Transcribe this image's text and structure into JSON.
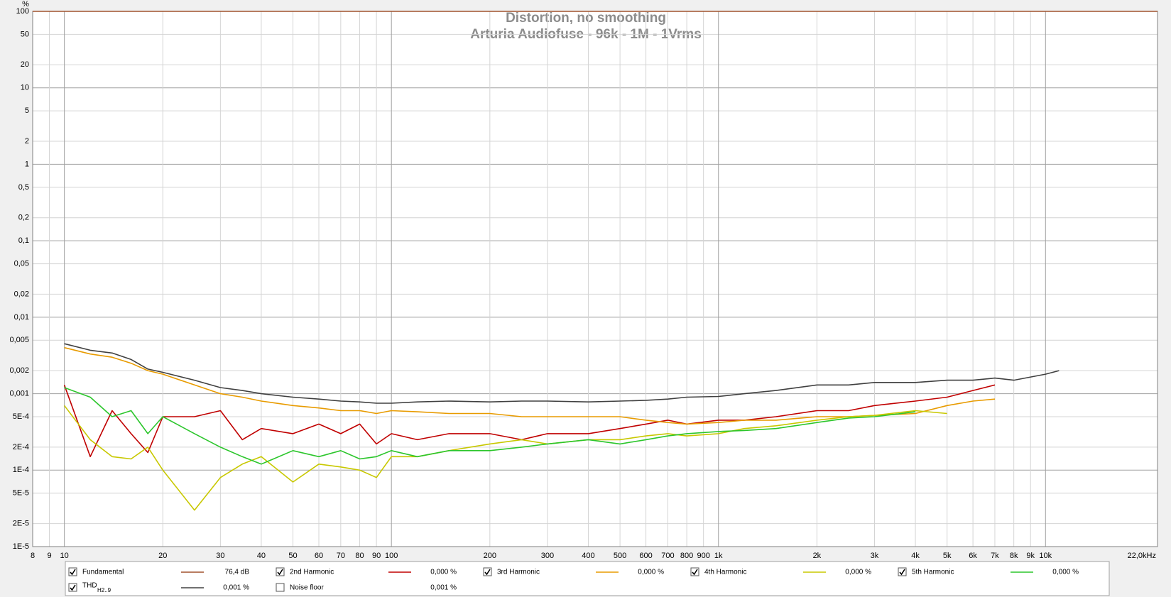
{
  "chart_data": {
    "type": "line",
    "title": "Distortion, no smoothing",
    "subtitle": "Arturia Audiofuse - 96k - 1M - 1Vrms",
    "y_label": "%",
    "log_x": true,
    "log_y": true,
    "grid": true,
    "xlim": [
      8,
      22000
    ],
    "ylim": [
      1e-05,
      100
    ],
    "xticks": [
      8,
      9,
      10,
      20,
      30,
      40,
      50,
      60,
      70,
      80,
      90,
      100,
      200,
      300,
      400,
      500,
      600,
      700,
      800,
      900,
      {
        "value": 1000,
        "label": "1k"
      },
      {
        "value": 2000,
        "label": "2k"
      },
      {
        "value": 3000,
        "label": "3k"
      },
      {
        "value": 4000,
        "label": "4k"
      },
      {
        "value": 5000,
        "label": "5k"
      },
      {
        "value": 6000,
        "label": "6k"
      },
      {
        "value": 7000,
        "label": "7k"
      },
      {
        "value": 8000,
        "label": "8k"
      },
      {
        "value": 9000,
        "label": "9k"
      },
      {
        "value": 10000,
        "label": "10k"
      },
      {
        "value": 22000,
        "label": "22,0kHz"
      }
    ],
    "yticks": [
      100,
      50,
      20,
      10,
      5,
      2,
      1,
      {
        "value": 0.5,
        "label": "0,5"
      },
      {
        "value": 0.2,
        "label": "0,2"
      },
      {
        "value": 0.1,
        "label": "0,1"
      },
      {
        "value": 0.05,
        "label": "0,05"
      },
      {
        "value": 0.02,
        "label": "0,02"
      },
      {
        "value": 0.01,
        "label": "0,01"
      },
      {
        "value": 0.005,
        "label": "0,005"
      },
      {
        "value": 0.002,
        "label": "0,002"
      },
      {
        "value": 0.001,
        "label": "0,001"
      },
      {
        "value": 0.0005,
        "label": "5E-4"
      },
      {
        "value": 0.0002,
        "label": "2E-4"
      },
      {
        "value": 0.0001,
        "label": "1E-4"
      },
      {
        "value": 5e-05,
        "label": "5E-5"
      },
      {
        "value": 2e-05,
        "label": "2E-5"
      },
      {
        "value": 1e-05,
        "label": "1E-5"
      }
    ],
    "x": [
      10,
      12,
      14,
      16,
      18,
      20,
      25,
      30,
      35,
      40,
      50,
      60,
      70,
      80,
      90,
      100,
      120,
      150,
      200,
      250,
      300,
      400,
      500,
      600,
      700,
      800,
      1000,
      1200,
      1500,
      2000,
      2500,
      3000,
      4000,
      5000,
      6000,
      7000,
      8000,
      10000,
      11000
    ],
    "series": [
      {
        "name": "Fundamental",
        "color": "#a0522d",
        "checked": true,
        "reading": "76,4 dB",
        "x": [
          8,
          22000
        ],
        "values": [
          100,
          100
        ]
      },
      {
        "name": "2nd Harmonic",
        "color": "#c00000",
        "checked": true,
        "reading": "0,000 %",
        "values": [
          0.0013,
          0.00015,
          0.0006,
          0.0003,
          0.00017,
          0.0005,
          0.0005,
          0.0006,
          0.00025,
          0.00035,
          0.0003,
          0.0004,
          0.0003,
          0.0004,
          0.00022,
          0.0003,
          0.00025,
          0.0003,
          0.0003,
          0.00025,
          0.0003,
          0.0003,
          0.00035,
          0.0004,
          0.00045,
          0.0004,
          0.00045,
          0.00045,
          0.0005,
          0.0006,
          0.0006,
          0.0007,
          0.0008,
          0.0009,
          0.0011,
          0.0013,
          null,
          null,
          null
        ]
      },
      {
        "name": "3rd Harmonic",
        "color": "#e89b00",
        "checked": true,
        "reading": "0,000 %",
        "values": [
          0.004,
          0.0033,
          0.003,
          0.0025,
          0.002,
          0.0018,
          0.0013,
          0.001,
          0.0009,
          0.0008,
          0.0007,
          0.00065,
          0.0006,
          0.0006,
          0.00055,
          0.0006,
          0.00058,
          0.00055,
          0.00055,
          0.0005,
          0.0005,
          0.0005,
          0.0005,
          0.00045,
          0.00042,
          0.0004,
          0.00042,
          0.00045,
          0.00045,
          0.0005,
          0.0005,
          0.00052,
          0.00055,
          0.0007,
          0.0008,
          0.00085,
          null,
          null,
          null
        ]
      },
      {
        "name": "4th Harmonic",
        "color": "#c8c800",
        "checked": true,
        "reading": "0,000 %",
        "values": [
          0.0007,
          0.00025,
          0.00015,
          0.00014,
          0.0002,
          0.0001,
          3e-05,
          8e-05,
          0.00012,
          0.00015,
          7e-05,
          0.00012,
          0.00011,
          0.0001,
          8e-05,
          0.00015,
          0.00015,
          0.00018,
          0.00022,
          0.00025,
          0.00022,
          0.00025,
          0.00025,
          0.00028,
          0.0003,
          0.00028,
          0.0003,
          0.00035,
          0.00038,
          0.00045,
          0.0005,
          0.00052,
          0.0006,
          0.00055,
          null,
          null,
          null,
          null,
          null
        ]
      },
      {
        "name": "5th Harmonic",
        "color": "#2cc62c",
        "checked": true,
        "reading": "0,000 %",
        "values": [
          0.0012,
          0.0009,
          0.0005,
          0.0006,
          0.0003,
          0.0005,
          0.0003,
          0.0002,
          0.00015,
          0.00012,
          0.00018,
          0.00015,
          0.00018,
          0.00014,
          0.00015,
          0.00018,
          0.00015,
          0.00018,
          0.00018,
          0.0002,
          0.00022,
          0.00025,
          0.00022,
          0.00025,
          0.00028,
          0.0003,
          0.00032,
          0.00033,
          0.00035,
          0.00042,
          0.00048,
          0.0005,
          0.00058,
          null,
          null,
          null,
          null,
          null,
          null
        ]
      },
      {
        "name": "THD",
        "name_sub": "H2..9",
        "color": "#404040",
        "checked": true,
        "reading": "0,001 %",
        "values": [
          0.0045,
          0.0037,
          0.0034,
          0.0028,
          0.0021,
          0.0019,
          0.0015,
          0.0012,
          0.0011,
          0.001,
          0.0009,
          0.00085,
          0.0008,
          0.00078,
          0.00075,
          0.00075,
          0.00078,
          0.0008,
          0.00078,
          0.0008,
          0.0008,
          0.00078,
          0.0008,
          0.00082,
          0.00085,
          0.0009,
          0.00092,
          0.001,
          0.0011,
          0.0013,
          0.0013,
          0.0014,
          0.0014,
          0.0015,
          0.0015,
          0.0016,
          0.0015,
          0.0018,
          0.002
        ]
      },
      {
        "name": "Noise floor",
        "checked": false,
        "reading": "0,001 %"
      }
    ]
  }
}
